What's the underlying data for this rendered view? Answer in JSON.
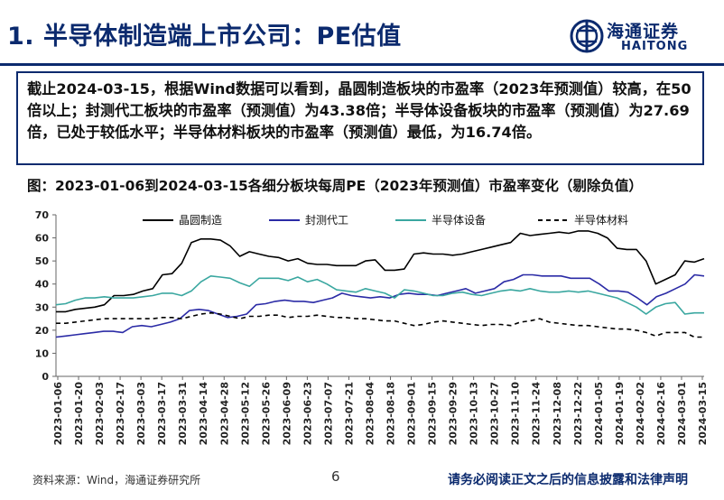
{
  "header": {
    "title": "1. 半导体制造端上市公司：PE估值",
    "logo_cn": "海通证券",
    "logo_en": "HAITONG"
  },
  "summary": "截止2024-03-15，根据Wind数据可以看到，晶圆制造板块的市盈率（2023年预测值）较高，在50倍以上；封测代工板块的市盈率（预测值）为43.38倍；半导体设备板块的市盈率（预测值）为27.69倍，已处于较低水平；半导体材料板块的市盈率（预测值）最低，为16.74倍。",
  "figure_caption": "图：2023-01-06到2024-03-15各细分板块每周PE（2023年预测值）市盈率变化（剔除负值）",
  "footer": {
    "source": "资料来源：Wind，海通证券研究所",
    "page": "6",
    "disclaimer": "请务必阅读正文之后的信息披露和法律声明"
  },
  "colors": {
    "wafer": "#000000",
    "packaging": "#2b2ba6",
    "equipment": "#3aa7a0",
    "materials": "#000000",
    "brand": "#0b2a6e"
  },
  "chart_data": {
    "type": "line",
    "ylim": [
      0,
      70
    ],
    "yticks": [
      0,
      10,
      20,
      30,
      40,
      50,
      60,
      70
    ],
    "legend_position": "top",
    "grid": false,
    "x_tick_labels": [
      "2023-01-06",
      "2023-01-20",
      "2023-02-03",
      "2023-02-17",
      "2023-03-03",
      "2023-03-17",
      "2023-03-31",
      "2023-04-14",
      "2023-04-28",
      "2023-05-12",
      "2023-05-26",
      "2023-06-09",
      "2023-06-23",
      "2023-07-07",
      "2023-07-21",
      "2023-08-04",
      "2023-08-18",
      "2023-09-01",
      "2023-09-15",
      "2023-09-29",
      "2023-10-13",
      "2023-10-27",
      "2023-11-10",
      "2023-11-24",
      "2023-12-08",
      "2023-12-22",
      "2024-01-05",
      "2024-01-19",
      "2024-02-02",
      "2024-02-16",
      "2024-03-01",
      "2024-03-15"
    ],
    "series": [
      {
        "name": "晶圆制造",
        "style": "solid",
        "values": [
          28,
          28,
          29,
          29.5,
          30,
          31,
          35,
          35,
          35.5,
          37,
          38,
          44,
          44.5,
          49,
          58,
          59.5,
          59.5,
          59,
          56.5,
          52,
          54,
          53,
          52,
          51.5,
          50,
          51,
          49,
          48.5,
          48.5,
          48,
          48,
          48,
          50,
          50.5,
          46,
          46,
          46.5,
          53,
          53.5,
          53,
          53,
          52.5,
          53,
          54,
          55,
          56,
          57,
          58,
          62,
          61,
          61.5,
          62,
          62.5,
          62,
          63,
          63,
          62,
          60,
          55.5,
          55,
          55,
          50,
          40,
          42,
          44,
          50,
          49.5,
          51
        ]
      },
      {
        "name": "封测代工",
        "style": "solid",
        "values": [
          17,
          17.5,
          18,
          18.5,
          19,
          19.5,
          19.5,
          19,
          21.5,
          22,
          21.5,
          22.5,
          23.5,
          25,
          28.5,
          29,
          28.5,
          27,
          25.5,
          26,
          27,
          31,
          31.5,
          32.5,
          33,
          32.5,
          32.5,
          32,
          33,
          34,
          36,
          35,
          34.5,
          34,
          34.5,
          34,
          35.5,
          36,
          35.5,
          35.5,
          35,
          36,
          37,
          38,
          36,
          37,
          38,
          41,
          42,
          44,
          44,
          43.5,
          43.5,
          43.5,
          42.5,
          42.5,
          42.5,
          40,
          37,
          37,
          36.5,
          34,
          31,
          34.5,
          36,
          38,
          40,
          44,
          43.5
        ]
      },
      {
        "name": "半导体设备",
        "style": "solid",
        "values": [
          31,
          31.5,
          33,
          34,
          34,
          34.5,
          34,
          34,
          34,
          34.5,
          35,
          36,
          36,
          35,
          37,
          41,
          43.5,
          43,
          42.5,
          40.5,
          39,
          42.5,
          42.5,
          42.5,
          41.5,
          43,
          41,
          42,
          40,
          37.5,
          37,
          36.5,
          38,
          37,
          36,
          34,
          37.5,
          37,
          36,
          35,
          35,
          36,
          36.5,
          35.5,
          35,
          36,
          37,
          37.5,
          37,
          38,
          37,
          36.5,
          36.5,
          37,
          36.5,
          37,
          36,
          35,
          34,
          32,
          30,
          27,
          30,
          31.5,
          32,
          27,
          27.5,
          27.5
        ]
      },
      {
        "name": "半导体材料",
        "style": "dashed",
        "values": [
          23,
          23,
          23.5,
          24,
          24.5,
          25,
          25,
          25,
          25,
          25,
          25,
          25.5,
          25.5,
          25,
          26,
          27,
          27.5,
          27,
          26,
          25,
          26,
          26,
          26.5,
          26.5,
          25.5,
          26,
          26,
          26.5,
          26,
          25.5,
          25.5,
          25,
          25,
          24.5,
          24,
          24,
          23,
          22,
          22.5,
          23.5,
          24,
          23.5,
          23,
          22.5,
          22,
          22.5,
          22.5,
          22,
          23.5,
          24,
          25,
          23.5,
          23,
          22.5,
          22,
          22,
          21.5,
          21,
          20.5,
          20.5,
          20,
          19,
          17.5,
          19,
          19,
          19,
          17,
          17
        ]
      }
    ]
  }
}
